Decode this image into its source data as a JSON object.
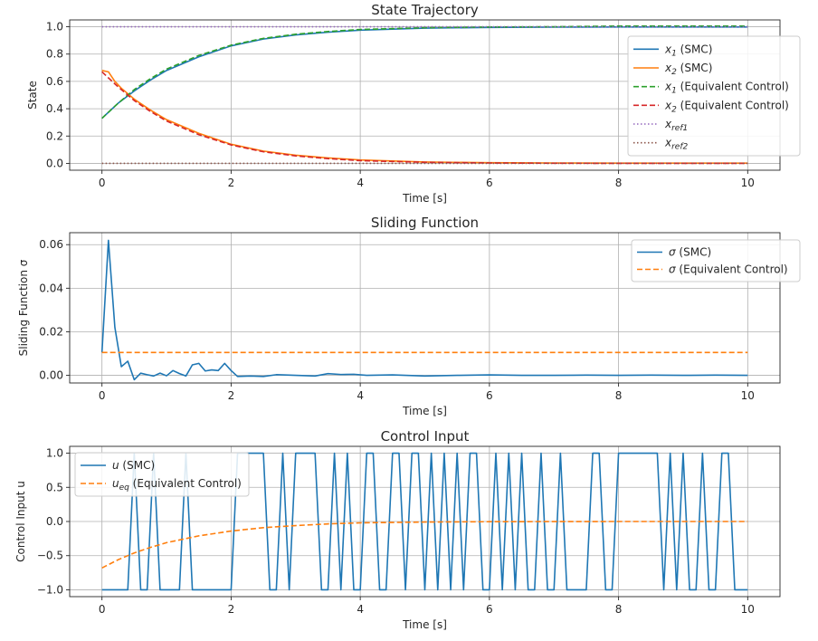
{
  "chart_data": [
    {
      "type": "line",
      "title": "State Trajectory",
      "xlabel": "Time [s]",
      "ylabel": "State",
      "xlim": [
        -0.5,
        10.5
      ],
      "ylim": [
        -0.05,
        1.05
      ],
      "xticks": [
        "0",
        "2",
        "4",
        "6",
        "8",
        "10"
      ],
      "xtick_values": [
        0,
        2,
        4,
        6,
        8,
        10
      ],
      "yticks": [
        "0.0",
        "0.2",
        "0.4",
        "0.6",
        "0.8",
        "1.0"
      ],
      "ytick_values": [
        0,
        0.2,
        0.4,
        0.6,
        0.8,
        1.0
      ],
      "grid": true,
      "legend_position": "right",
      "series": [
        {
          "name": "x_1 (SMC)",
          "legend_main": "x",
          "legend_sub": "1",
          "legend_rest": " (SMC)",
          "color": "#1f77b4",
          "style": "solid",
          "x": [
            0,
            0.25,
            0.5,
            0.75,
            1,
            1.5,
            2,
            2.5,
            3,
            3.5,
            4,
            5,
            6,
            7,
            8,
            9,
            10
          ],
          "y": [
            0.33,
            0.44,
            0.53,
            0.61,
            0.68,
            0.78,
            0.86,
            0.91,
            0.94,
            0.96,
            0.975,
            0.99,
            0.995,
            0.997,
            0.998,
            0.998,
            0.998
          ]
        },
        {
          "name": "x_2 (SMC)",
          "legend_main": "x",
          "legend_sub": "2",
          "legend_rest": " (SMC)",
          "color": "#ff7f0e",
          "style": "solid",
          "x": [
            0,
            0.1,
            0.2,
            0.3,
            0.5,
            0.75,
            1,
            1.5,
            2,
            2.5,
            3,
            3.5,
            4,
            5,
            6,
            7,
            8,
            9,
            10
          ],
          "y": [
            0.68,
            0.67,
            0.6,
            0.55,
            0.47,
            0.39,
            0.32,
            0.22,
            0.14,
            0.09,
            0.06,
            0.04,
            0.025,
            0.01,
            0.005,
            0.003,
            0.002,
            0.002,
            0.002
          ]
        },
        {
          "name": "x_1 (Equivalent Control)",
          "legend_main": "x",
          "legend_sub": "1",
          "legend_rest": " (Equivalent Control)",
          "color": "#2ca02c",
          "style": "dashed",
          "x": [
            0,
            0.25,
            0.5,
            0.75,
            1,
            1.5,
            2,
            2.5,
            3,
            3.5,
            4,
            5,
            6,
            7,
            8,
            9,
            10
          ],
          "y": [
            0.33,
            0.44,
            0.54,
            0.62,
            0.69,
            0.79,
            0.865,
            0.915,
            0.945,
            0.965,
            0.98,
            0.993,
            0.998,
            1.0,
            1.005,
            1.005,
            1.005
          ]
        },
        {
          "name": "x_2 (Equivalent Control)",
          "legend_main": "x",
          "legend_sub": "2",
          "legend_rest": " (Equivalent Control)",
          "color": "#d62728",
          "style": "dashed",
          "x": [
            0,
            0.25,
            0.5,
            0.75,
            1,
            1.5,
            2,
            2.5,
            3,
            3.5,
            4,
            5,
            6,
            7,
            8,
            9,
            10
          ],
          "y": [
            0.67,
            0.56,
            0.46,
            0.38,
            0.31,
            0.21,
            0.135,
            0.085,
            0.055,
            0.035,
            0.02,
            0.008,
            0.003,
            0.001,
            0,
            0,
            0
          ]
        },
        {
          "name": "x_ref1",
          "legend_main": "x",
          "legend_sub": "ref1",
          "legend_rest": "",
          "color": "#9467bd",
          "style": "dotted",
          "x": [
            0,
            10
          ],
          "y": [
            1.0,
            1.0
          ]
        },
        {
          "name": "x_ref2",
          "legend_main": "x",
          "legend_sub": "ref2",
          "legend_rest": "",
          "color": "#8c564b",
          "style": "dotted",
          "x": [
            0,
            10
          ],
          "y": [
            0.0,
            0.0
          ]
        }
      ]
    },
    {
      "type": "line",
      "title": "Sliding Function",
      "xlabel": "Time [s]",
      "ylabel": "Sliding Function σ",
      "xlim": [
        -0.5,
        10.5
      ],
      "ylim": [
        -0.0035,
        0.0655
      ],
      "xticks": [
        "0",
        "2",
        "4",
        "6",
        "8",
        "10"
      ],
      "xtick_values": [
        0,
        2,
        4,
        6,
        8,
        10
      ],
      "yticks": [
        "0.00",
        "0.02",
        "0.04",
        "0.06"
      ],
      "ytick_values": [
        0,
        0.02,
        0.04,
        0.06
      ],
      "grid": true,
      "legend_position": "top-right",
      "series": [
        {
          "name": "σ (SMC)",
          "legend_main": "σ",
          "legend_sub": "",
          "legend_rest": " (SMC)",
          "color": "#1f77b4",
          "style": "solid",
          "x": [
            0,
            0.1,
            0.2,
            0.3,
            0.4,
            0.5,
            0.6,
            0.7,
            0.8,
            0.9,
            1.0,
            1.1,
            1.2,
            1.3,
            1.4,
            1.5,
            1.6,
            1.7,
            1.8,
            1.9,
            2.0,
            2.1,
            2.3,
            2.5,
            2.7,
            3.0,
            3.3,
            3.5,
            3.7,
            3.9,
            4.1,
            4.5,
            5.0,
            5.5,
            6.0,
            6.5,
            7.0,
            7.5,
            8.0,
            8.5,
            9.0,
            9.5,
            10.0
          ],
          "y": [
            0.0105,
            0.062,
            0.022,
            0.004,
            0.0065,
            -0.002,
            0.001,
            0.0003,
            -0.0003,
            0.001,
            -0.0002,
            0.0022,
            0.0008,
            -0.0003,
            0.0048,
            0.0055,
            0.002,
            0.0025,
            0.0022,
            0.0055,
            0.0022,
            -0.0005,
            -0.0003,
            -0.0005,
            0.0003,
            0.0,
            -0.0003,
            0.0008,
            0.0004,
            0.0005,
            0.0,
            0.0002,
            -0.0003,
            0.0,
            0.0002,
            0.0,
            0.0,
            0.0001,
            0.0,
            0.0001,
            0.0,
            0.0001,
            0.0
          ]
        },
        {
          "name": "σ (Equivalent Control)",
          "legend_main": "σ",
          "legend_sub": "",
          "legend_rest": " (Equivalent Control)",
          "color": "#ff7f0e",
          "style": "dashed",
          "x": [
            0,
            10
          ],
          "y": [
            0.0105,
            0.0105
          ]
        }
      ]
    },
    {
      "type": "line",
      "title": "Control Input",
      "xlabel": "Time [s]",
      "ylabel": "Control Input u",
      "xlim": [
        -0.5,
        10.5
      ],
      "ylim": [
        -1.1,
        1.1
      ],
      "xticks": [
        "0",
        "2",
        "4",
        "6",
        "8",
        "10"
      ],
      "xtick_values": [
        0,
        2,
        4,
        6,
        8,
        10
      ],
      "yticks": [
        "−1.0",
        "−0.5",
        "0.0",
        "0.5",
        "1.0"
      ],
      "ytick_values": [
        -1.0,
        -0.5,
        0.0,
        0.5,
        1.0
      ],
      "grid": true,
      "legend_position": "top-left",
      "series": [
        {
          "name": "u (SMC)",
          "legend_main": "u",
          "legend_sub": "",
          "legend_rest": " (SMC)",
          "color": "#1f77b4",
          "style": "solid",
          "x": [
            0,
            0.4,
            0.5,
            0.6,
            0.7,
            0.8,
            0.9,
            1.2,
            1.3,
            1.4,
            2.0,
            2.1,
            2.2,
            2.5,
            2.6,
            2.7,
            2.8,
            2.9,
            3.0,
            3.1,
            3.2,
            3.3,
            3.4,
            3.5,
            3.6,
            3.7,
            3.8,
            3.9,
            4.0,
            4.1,
            4.2,
            4.3,
            4.4,
            4.5,
            4.6,
            4.7,
            4.8,
            4.9,
            5.0,
            5.1,
            5.2,
            5.3,
            5.4,
            5.5,
            5.6,
            5.7,
            5.8,
            5.9,
            6.0,
            6.1,
            6.2,
            6.3,
            6.4,
            6.5,
            6.6,
            6.7,
            6.8,
            6.9,
            7.0,
            7.1,
            7.2,
            7.3,
            7.5,
            7.6,
            7.7,
            7.8,
            7.9,
            8.0,
            8.1,
            8.6,
            8.7,
            8.8,
            8.9,
            9.0,
            9.1,
            9.2,
            9.3,
            9.4,
            9.5,
            9.6,
            9.7,
            9.8,
            9.9,
            10.0
          ],
          "y": [
            -1,
            -1,
            1,
            -1,
            -1,
            1,
            -1,
            -1,
            1,
            -1,
            -1,
            1,
            1,
            1,
            -1,
            -1,
            1,
            -1,
            1,
            1,
            1,
            1,
            -1,
            -1,
            1,
            -1,
            1,
            -1,
            -1,
            1,
            1,
            -1,
            -1,
            1,
            1,
            -1,
            1,
            1,
            -1,
            1,
            -1,
            1,
            -1,
            1,
            -1,
            1,
            1,
            -1,
            -1,
            1,
            -1,
            1,
            -1,
            1,
            -1,
            -1,
            1,
            -1,
            -1,
            1,
            -1,
            -1,
            -1,
            1,
            1,
            -1,
            -1,
            1,
            1,
            1,
            -1,
            1,
            -1,
            1,
            -1,
            -1,
            1,
            -1,
            -1,
            1,
            1,
            -1,
            -1,
            -1
          ]
        },
        {
          "name": "u_eq (Equivalent Control)",
          "legend_main": "u",
          "legend_sub": "eq",
          "legend_rest": " (Equivalent Control)",
          "color": "#ff7f0e",
          "style": "dashed",
          "x": [
            0,
            0.25,
            0.5,
            0.75,
            1,
            1.5,
            2,
            2.5,
            3,
            3.5,
            4,
            5,
            6,
            7,
            8,
            9,
            10
          ],
          "y": [
            -0.68,
            -0.56,
            -0.46,
            -0.38,
            -0.31,
            -0.21,
            -0.14,
            -0.09,
            -0.06,
            -0.035,
            -0.02,
            -0.008,
            -0.003,
            -0.001,
            0,
            0,
            0
          ]
        }
      ]
    }
  ]
}
